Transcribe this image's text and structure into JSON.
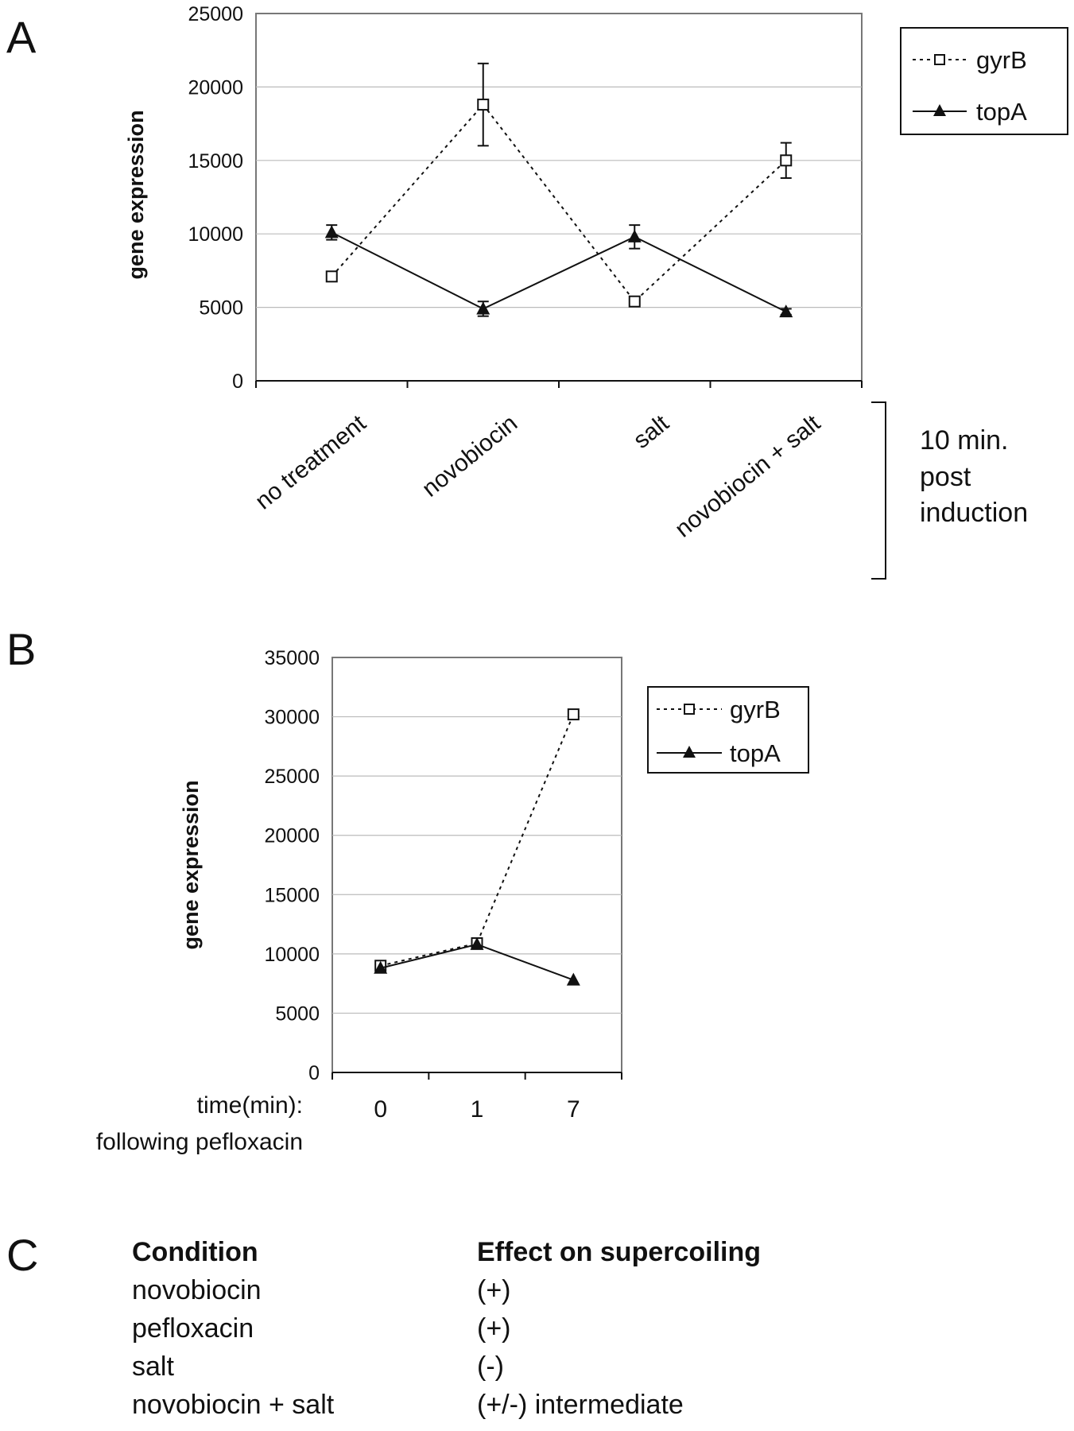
{
  "panels": {
    "a_letter": "A",
    "b_letter": "B",
    "c_letter": "C"
  },
  "chart_data": [
    {
      "type": "line",
      "ylabel": "gene expression",
      "ylim": [
        0,
        25000
      ],
      "yticks": [
        0,
        5000,
        10000,
        15000,
        20000,
        25000
      ],
      "categories": [
        "no treatment",
        "novobiocin",
        "salt",
        "novobiocin + salt"
      ],
      "grid": true,
      "legend_position": "top-right",
      "series": [
        {
          "name": "gyrB",
          "style": "dotted",
          "marker": "open-square",
          "values": [
            7100,
            18800,
            5400,
            15000
          ],
          "error": [
            0,
            2800,
            0,
            1200
          ]
        },
        {
          "name": "topA",
          "style": "solid",
          "marker": "filled-triangle",
          "values": [
            10100,
            4900,
            9800,
            4700
          ],
          "error": [
            500,
            500,
            800,
            200
          ]
        }
      ],
      "bracket_note": [
        "10 min.",
        "post",
        "induction"
      ]
    },
    {
      "type": "line",
      "ylabel": "gene expression",
      "ylim": [
        0,
        35000
      ],
      "yticks": [
        0,
        5000,
        10000,
        15000,
        20000,
        25000,
        30000,
        35000
      ],
      "categories": [
        "0",
        "1",
        "7"
      ],
      "xlabel": [
        "time(min):",
        "following pefloxacin"
      ],
      "grid": true,
      "legend_position": "right",
      "series": [
        {
          "name": "gyrB",
          "style": "dotted",
          "marker": "open-square",
          "values": [
            9000,
            10900,
            30200
          ]
        },
        {
          "name": "topA",
          "style": "solid",
          "marker": "filled-triangle",
          "values": [
            8800,
            10800,
            7800
          ]
        }
      ]
    }
  ],
  "table": {
    "headers": [
      "Condition",
      "Effect on supercoiling"
    ],
    "rows": [
      [
        "novobiocin",
        "(+)"
      ],
      [
        "pefloxacin",
        "(+)"
      ],
      [
        "salt",
        "(-)"
      ],
      [
        "novobiocin + salt",
        "(+/-) intermediate"
      ]
    ]
  }
}
